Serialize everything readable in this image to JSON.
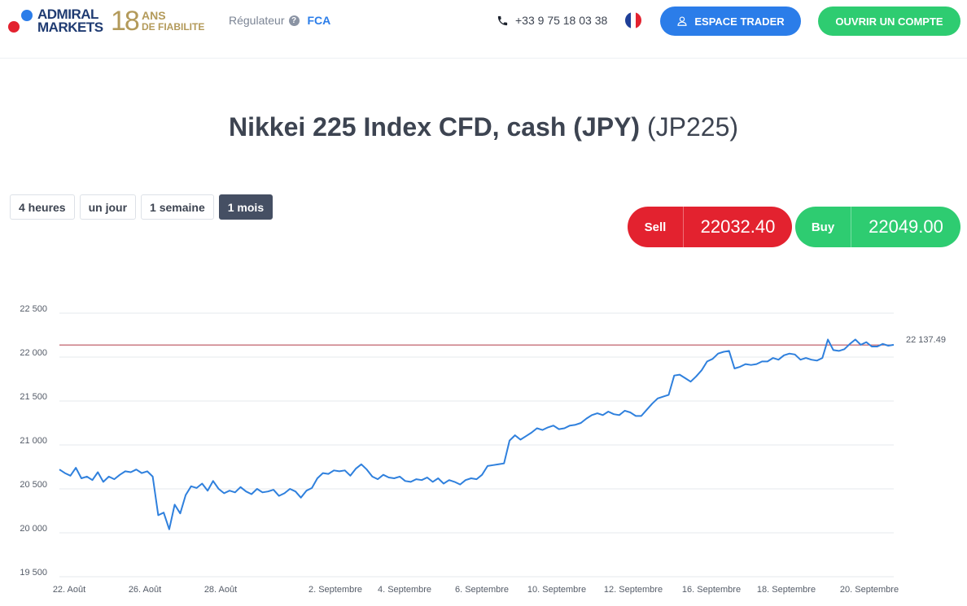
{
  "header": {
    "logo": {
      "line1": "ADMIRAL",
      "line2": "MARKETS"
    },
    "anniversary": {
      "number": "18",
      "line1": "ANS",
      "line2": "DE FIABILITE"
    },
    "regulator": {
      "label": "Régulateur",
      "help_icon": "question-circle-icon",
      "value": "FCA"
    },
    "phone": {
      "icon": "phone-icon",
      "number": "+33 9 75 18 03 38"
    },
    "language": {
      "icon": "france-flag-icon",
      "colors": [
        "#1f3f98",
        "#ffffff",
        "#e3222f"
      ]
    },
    "trader_button": {
      "icon": "user-icon",
      "label": "ESPACE TRADER"
    },
    "open_account_button": {
      "label": "OUVRIR UN COMPTE"
    }
  },
  "title": {
    "name": "Nikkei 225 Index CFD, cash (JPY)",
    "symbol": "(JP225)"
  },
  "periods": {
    "items": [
      {
        "label": "4 heures"
      },
      {
        "label": "un jour"
      },
      {
        "label": "1 semaine"
      },
      {
        "label": "1 mois"
      }
    ],
    "active": "1 mois"
  },
  "sell": {
    "label": "Sell",
    "price": "22032.40"
  },
  "buy": {
    "label": "Buy",
    "price": "22049.00"
  },
  "colors": {
    "sell": "#e3222f",
    "buy": "#2ecc71",
    "accent": "#2b7de9",
    "line": "#2f80dd",
    "reference": "#b03a48"
  },
  "chart_data": {
    "type": "line",
    "yticks": [
      22500,
      22000,
      21500,
      21000,
      20500,
      20000,
      19500
    ],
    "ytick_labels": [
      "22 500",
      "22 000",
      "21 500",
      "21 000",
      "20 500",
      "20 000",
      "19 500"
    ],
    "ylim": [
      19500,
      22750
    ],
    "xtick_labels": [
      "22. Août",
      "26. Août",
      "28. Août",
      "2. Septembre",
      "4. Septembre",
      "6. Septembre",
      "10. Septembre",
      "12. Septembre",
      "16. Septembre",
      "18. Septembre",
      "20. Septembre"
    ],
    "reference_line": {
      "value": 22137.49,
      "label": "22 137.49"
    },
    "series": [
      {
        "values": [
          20720,
          20680,
          20650,
          20740,
          20620,
          20640,
          20600,
          20690,
          20580,
          20640,
          20610,
          20660,
          20700,
          20690,
          20720,
          20680,
          20700,
          20640,
          20200,
          20230,
          20040,
          20320,
          20220,
          20430,
          20530,
          20510,
          20560,
          20480,
          20590,
          20500,
          20450,
          20480,
          20460,
          20520,
          20470,
          20440,
          20500,
          20460,
          20470,
          20490,
          20420,
          20450,
          20500,
          20470,
          20400,
          20480,
          20510,
          20620,
          20680,
          20670,
          20710,
          20700,
          20710,
          20650,
          20730,
          20780,
          20720,
          20640,
          20610,
          20660,
          20630,
          20620,
          20640,
          20590,
          20580,
          20610,
          20600,
          20630,
          20580,
          20620,
          20560,
          20600,
          20580,
          20550,
          20600,
          20620,
          20610,
          20660,
          20760,
          20770,
          20780,
          20790,
          21050,
          21110,
          21060,
          21100,
          21140,
          21190,
          21170,
          21200,
          21220,
          21180,
          21190,
          21220,
          21230,
          21250,
          21300,
          21340,
          21360,
          21340,
          21380,
          21350,
          21340,
          21390,
          21370,
          21330,
          21330,
          21400,
          21470,
          21530,
          21550,
          21570,
          21790,
          21800,
          21760,
          21720,
          21780,
          21850,
          21950,
          21980,
          22040,
          22060,
          22070,
          21870,
          21890,
          21920,
          21910,
          21920,
          21950,
          21950,
          21990,
          21970,
          22020,
          22040,
          22030,
          21970,
          21990,
          21970,
          21960,
          21990,
          22200,
          22080,
          22070,
          22090,
          22150,
          22200,
          22140,
          22170,
          22120,
          22120,
          22150,
          22130,
          22140
        ]
      }
    ]
  }
}
